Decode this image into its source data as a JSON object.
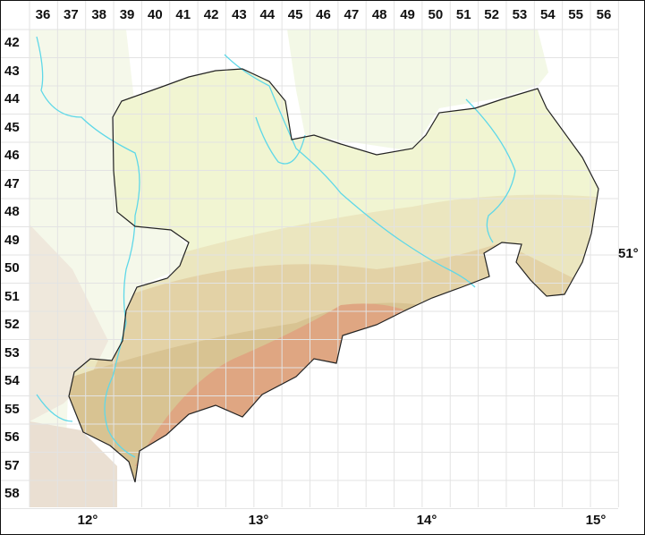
{
  "grid": {
    "columns": [
      "36",
      "37",
      "38",
      "39",
      "40",
      "41",
      "42",
      "43",
      "44",
      "45",
      "46",
      "47",
      "48",
      "49",
      "50",
      "51",
      "52",
      "53",
      "54",
      "55",
      "56"
    ],
    "rows": [
      "42",
      "43",
      "44",
      "45",
      "46",
      "47",
      "48",
      "49",
      "50",
      "51",
      "52",
      "53",
      "54",
      "55",
      "56",
      "57",
      "58"
    ]
  },
  "longitude_labels": [
    "12°",
    "13°",
    "14°",
    "15°"
  ],
  "latitude_labels": [
    "51°"
  ],
  "colors": {
    "lowland": "#f1f5d2",
    "hills": "#e6dcb0",
    "uplands": "#d9c08f",
    "mountains": "#e0a080",
    "outside": "#f6f9ea",
    "river": "#5fd8e8",
    "border": "#222222",
    "grid": "#e6e6e6"
  }
}
